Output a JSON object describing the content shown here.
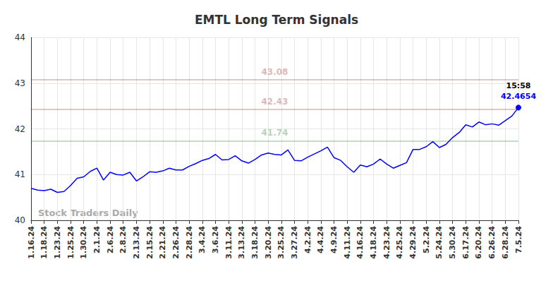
{
  "chart_data": {
    "type": "line",
    "title": "EMTL Long Term Signals",
    "categories": [
      "1.16.24",
      null,
      "1.18.24",
      null,
      "1.23.24",
      null,
      "1.25.24",
      null,
      "1.30.24",
      null,
      "2.1.24",
      null,
      "2.6.24",
      null,
      "2.8.24",
      null,
      "2.13.24",
      null,
      "2.15.24",
      null,
      "2.21.24",
      null,
      "2.26.24",
      null,
      "2.28.24",
      null,
      "3.4.24",
      null,
      "3.6.24",
      null,
      "3.11.24",
      null,
      "3.13.24",
      null,
      "3.18.24",
      null,
      "3.20.24",
      null,
      "3.25.24",
      null,
      "3.27.24",
      null,
      "4.2.24",
      null,
      "4.4.24",
      null,
      "4.9.24",
      null,
      "4.11.24",
      null,
      "4.16.24",
      null,
      "4.18.24",
      null,
      "4.23.24",
      null,
      "4.25.24",
      null,
      "4.29.24",
      null,
      "5.2.24",
      null,
      "5.24.24",
      null,
      "5.30.24",
      null,
      "6.17.24",
      null,
      "6.20.24",
      null,
      "6.26.24",
      null,
      "6.28.24",
      null,
      "7.5.24"
    ],
    "values": [
      40.7,
      40.66,
      40.65,
      40.68,
      40.61,
      40.63,
      40.76,
      40.92,
      40.95,
      41.07,
      41.14,
      40.88,
      41.05,
      41.0,
      40.99,
      41.05,
      40.86,
      40.95,
      41.06,
      41.05,
      41.08,
      41.14,
      41.1,
      41.1,
      41.18,
      41.24,
      41.31,
      41.35,
      41.44,
      41.32,
      41.33,
      41.41,
      41.3,
      41.25,
      41.33,
      41.43,
      41.47,
      41.44,
      41.43,
      41.54,
      41.31,
      41.3,
      41.38,
      41.45,
      41.52,
      41.6,
      41.37,
      41.31,
      41.17,
      41.05,
      41.21,
      41.17,
      41.23,
      41.34,
      41.23,
      41.14,
      41.2,
      41.26,
      41.55,
      41.55,
      41.61,
      41.72,
      41.59,
      41.66,
      41.81,
      41.92,
      42.09,
      42.04,
      42.15,
      42.09,
      42.11,
      42.08,
      42.18,
      42.28,
      42.4654
    ],
    "color": "#0000ff",
    "ylim": [
      40,
      44
    ],
    "yticks": [
      40,
      41,
      42,
      43,
      44
    ],
    "grid": true,
    "reference_lines": [
      {
        "value": 43.08,
        "color": "#8b0000"
      },
      {
        "value": 42.43,
        "color": "#8b0000"
      },
      {
        "value": 41.74,
        "color": "#006400"
      }
    ],
    "last_point_time": "15:58",
    "watermark": "Stock Traders Daily"
  }
}
